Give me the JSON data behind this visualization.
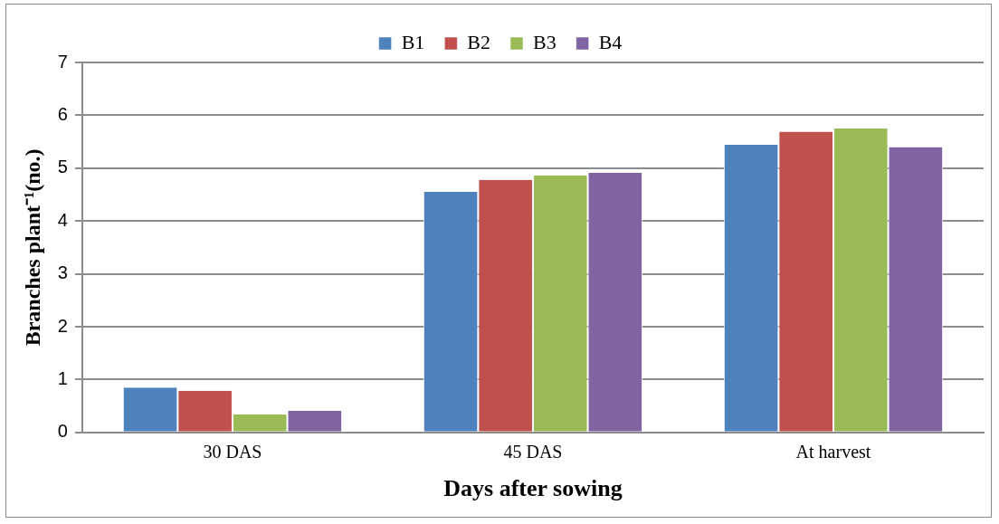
{
  "chart_data": {
    "type": "bar",
    "xlabel": "Days after sowing",
    "ylabel": "Branches plant⁻¹(no.)",
    "categories": [
      "30 DAS",
      "45 DAS",
      "At harvest"
    ],
    "series": [
      {
        "name": "B1",
        "color": "#4f81bd",
        "values": [
          0.85,
          4.55,
          5.44
        ]
      },
      {
        "name": "B2",
        "color": "#c0504d",
        "values": [
          0.79,
          4.78,
          5.69
        ]
      },
      {
        "name": "B3",
        "color": "#9bbb59",
        "values": [
          0.34,
          4.86,
          5.75
        ]
      },
      {
        "name": "B4",
        "color": "#8064a2",
        "values": [
          0.41,
          4.91,
          5.4
        ]
      }
    ],
    "ylim": [
      0,
      7
    ],
    "yticks": [
      0,
      1,
      2,
      3,
      4,
      5,
      6,
      7
    ],
    "grid": "y",
    "legend": "top"
  }
}
